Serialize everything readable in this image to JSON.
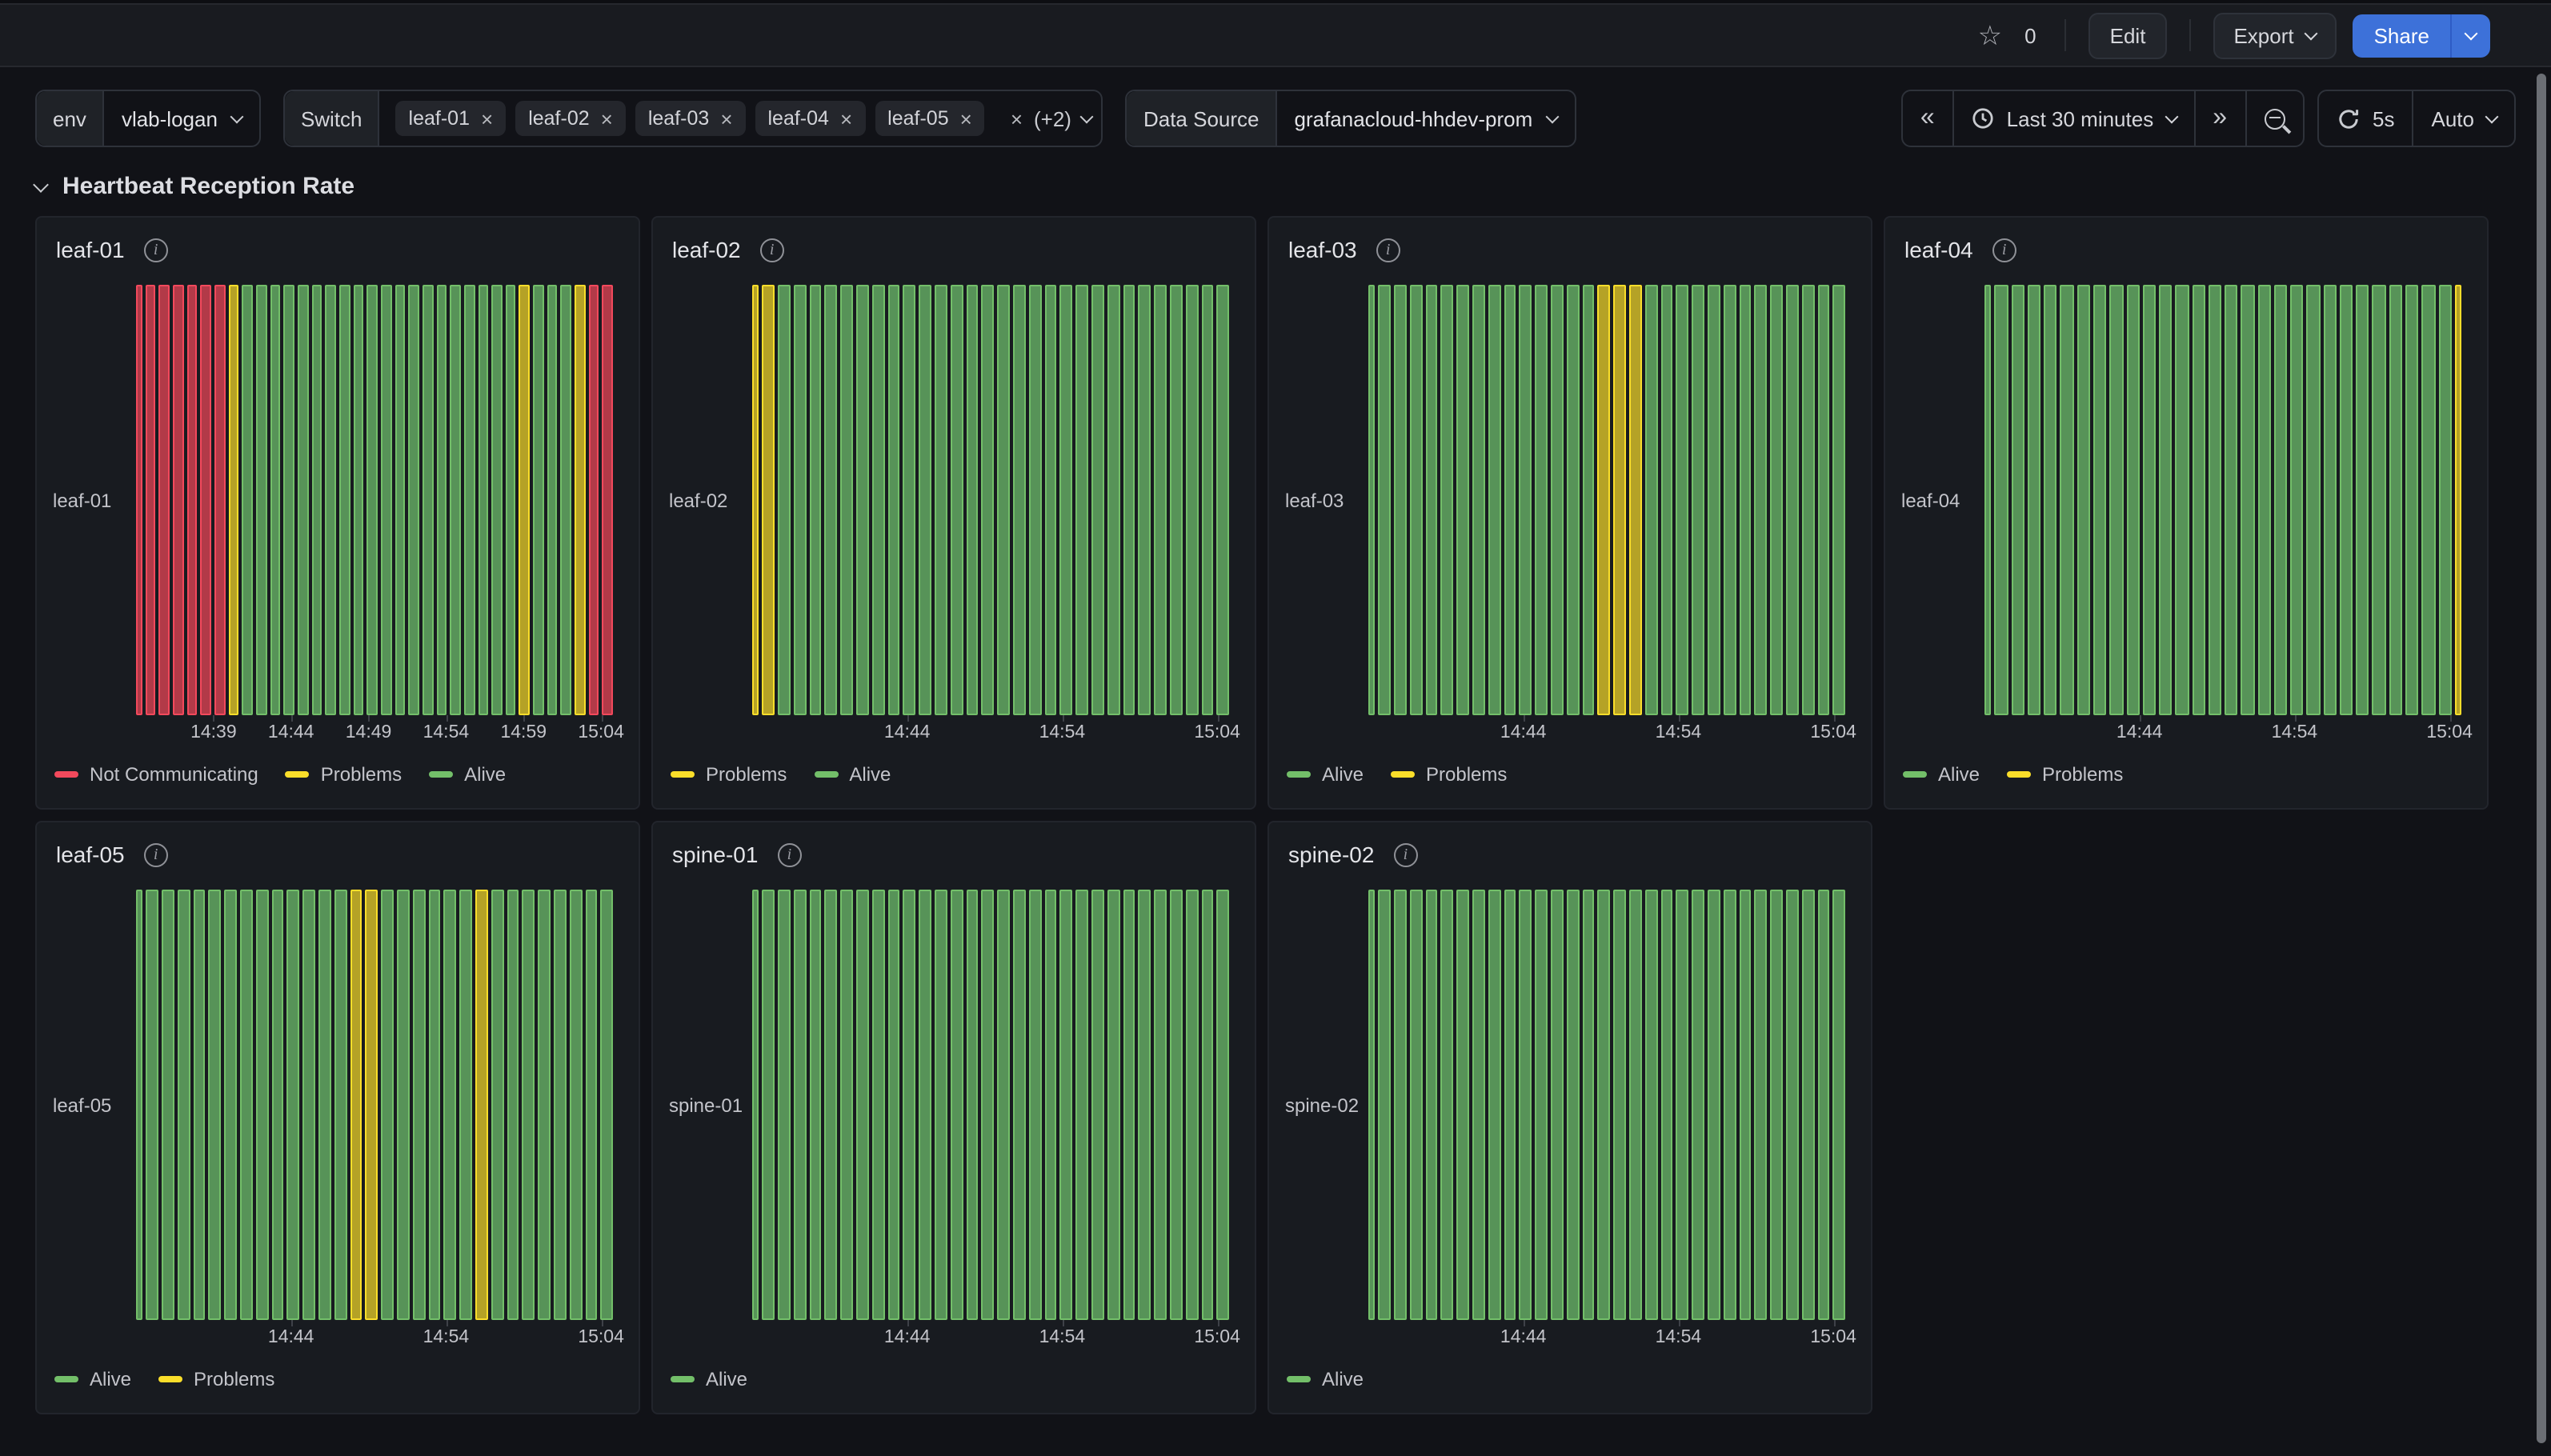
{
  "toolbar": {
    "star_count": "0",
    "edit_label": "Edit",
    "export_label": "Export",
    "share_label": "Share"
  },
  "filters": {
    "env_label": "env",
    "env_value": "vlab-logan",
    "switch_label": "Switch",
    "switch_chips": [
      "leaf-01",
      "leaf-02",
      "leaf-03",
      "leaf-04",
      "leaf-05"
    ],
    "switch_more": "(+2)",
    "datasource_label": "Data Source",
    "datasource_value": "grafanacloud-hhdev-prom"
  },
  "timebar": {
    "range_label": "Last 30 minutes",
    "refresh_interval": "5s",
    "refresh_mode": "Auto"
  },
  "section_title": "Heartbeat Reception Rate",
  "colors": {
    "alive": "#73BF69",
    "problems": "#FADE2A",
    "not_communicating": "#F2495C",
    "bar_fill_alive": "#579358",
    "bar_fill_problems": "#B5A226",
    "bar_fill_not_communicating": "#B23A48",
    "share_blue": "#3D71D9"
  },
  "chart_data": [
    {
      "type": "bar",
      "title": "leaf-01",
      "y_label": "leaf-01",
      "x_ticks": [
        "14:39",
        "14:44",
        "14:49",
        "14:54",
        "14:59",
        "15:04"
      ],
      "legend": [
        "Not Communicating",
        "Problems",
        "Alive"
      ],
      "states_map": {
        "g": "Alive",
        "y": "Problems",
        "r": "Not Communicating"
      },
      "bars": [
        "r!",
        "r",
        "r",
        "r",
        "r",
        "r",
        "r",
        "y",
        "g",
        "g",
        "g",
        "g",
        "g",
        "g",
        "g",
        "g",
        "g",
        "g",
        "g",
        "g",
        "g",
        "g",
        "g",
        "g",
        "g",
        "g",
        "g",
        "g",
        "y",
        "g",
        "g",
        "g",
        "y",
        "r",
        "r"
      ]
    },
    {
      "type": "bar",
      "title": "leaf-02",
      "y_label": "leaf-02",
      "x_ticks": [
        "14:44",
        "14:54",
        "15:04"
      ],
      "legend": [
        "Problems",
        "Alive"
      ],
      "states_map": {
        "g": "Alive",
        "y": "Problems",
        "r": "Not Communicating"
      },
      "bars": [
        "y!",
        "y",
        "g",
        "g",
        "g",
        "g",
        "g",
        "g",
        "g",
        "g",
        "g",
        "g",
        "g",
        "g",
        "g",
        "g",
        "g",
        "g",
        "g",
        "g",
        "g",
        "g",
        "g",
        "g",
        "g",
        "g",
        "g",
        "g",
        "g",
        "g",
        "g"
      ]
    },
    {
      "type": "bar",
      "title": "leaf-03",
      "y_label": "leaf-03",
      "x_ticks": [
        "14:44",
        "14:54",
        "15:04"
      ],
      "legend": [
        "Alive",
        "Problems"
      ],
      "states_map": {
        "g": "Alive",
        "y": "Problems",
        "r": "Not Communicating"
      },
      "bars": [
        "g!",
        "g",
        "g",
        "g",
        "g",
        "g",
        "g",
        "g",
        "g",
        "g",
        "g",
        "g",
        "g",
        "g",
        "g",
        "y",
        "y",
        "y",
        "g",
        "g",
        "g",
        "g",
        "g",
        "g",
        "g",
        "g",
        "g",
        "g",
        "g",
        "g",
        "g"
      ]
    },
    {
      "type": "bar",
      "title": "leaf-04",
      "y_label": "leaf-04",
      "x_ticks": [
        "14:44",
        "14:54",
        "15:04"
      ],
      "legend": [
        "Alive",
        "Problems"
      ],
      "states_map": {
        "g": "Alive",
        "y": "Problems",
        "r": "Not Communicating"
      },
      "bars": [
        "g!",
        "g",
        "g",
        "g",
        "g",
        "g",
        "g",
        "g",
        "g",
        "g",
        "g",
        "g",
        "g",
        "g",
        "g",
        "g",
        "g",
        "g",
        "g",
        "g",
        "g",
        "g",
        "g",
        "g",
        "g",
        "g",
        "g",
        "g",
        "g",
        "y!"
      ]
    },
    {
      "type": "bar",
      "title": "leaf-05",
      "y_label": "leaf-05",
      "x_ticks": [
        "14:44",
        "14:54",
        "15:04"
      ],
      "legend": [
        "Alive",
        "Problems"
      ],
      "states_map": {
        "g": "Alive",
        "y": "Problems",
        "r": "Not Communicating"
      },
      "bars": [
        "g!",
        "g",
        "g",
        "g",
        "g",
        "g",
        "g",
        "g",
        "g",
        "g",
        "g",
        "g",
        "g",
        "g",
        "y",
        "y",
        "g",
        "g",
        "g",
        "g",
        "g",
        "g",
        "y",
        "g",
        "g",
        "g",
        "g",
        "g",
        "g",
        "g",
        "g"
      ]
    },
    {
      "type": "bar",
      "title": "spine-01",
      "y_label": "spine-01",
      "x_ticks": [
        "14:44",
        "14:54",
        "15:04"
      ],
      "legend": [
        "Alive"
      ],
      "states_map": {
        "g": "Alive",
        "y": "Problems",
        "r": "Not Communicating"
      },
      "bars": [
        "g!",
        "g",
        "g",
        "g",
        "g",
        "g",
        "g",
        "g",
        "g",
        "g",
        "g",
        "g",
        "g",
        "g",
        "g",
        "g",
        "g",
        "g",
        "g",
        "g",
        "g",
        "g",
        "g",
        "g",
        "g",
        "g",
        "g",
        "g",
        "g",
        "g",
        "g"
      ]
    },
    {
      "type": "bar",
      "title": "spine-02",
      "y_label": "spine-02",
      "x_ticks": [
        "14:44",
        "14:54",
        "15:04"
      ],
      "legend": [
        "Alive"
      ],
      "states_map": {
        "g": "Alive",
        "y": "Problems",
        "r": "Not Communicating"
      },
      "bars": [
        "g!",
        "g",
        "g",
        "g",
        "g",
        "g",
        "g",
        "g",
        "g",
        "g",
        "g",
        "g",
        "g",
        "g",
        "g",
        "g",
        "g",
        "g",
        "g",
        "g",
        "g",
        "g",
        "g",
        "g",
        "g",
        "g",
        "g",
        "g",
        "g",
        "g",
        "g"
      ]
    }
  ]
}
